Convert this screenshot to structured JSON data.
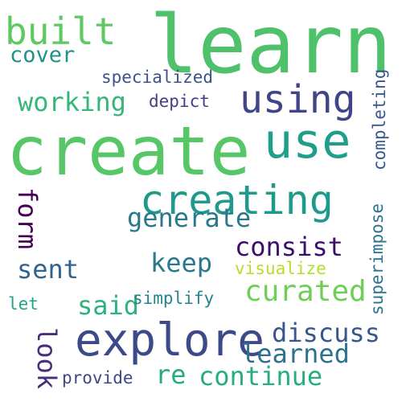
{
  "words": [
    {
      "key": "learn",
      "text": "learn",
      "color": "#4fc16b"
    },
    {
      "key": "create",
      "text": "create",
      "color": "#56c667"
    },
    {
      "key": "use",
      "text": "use",
      "color": "#1f9e89"
    },
    {
      "key": "explore",
      "text": "explore",
      "color": "#3e4989"
    },
    {
      "key": "creating",
      "text": "creating",
      "color": "#1f9a8a"
    },
    {
      "key": "using",
      "text": "using",
      "color": "#404588"
    },
    {
      "key": "built",
      "text": "built",
      "color": "#5ec962"
    },
    {
      "key": "generate",
      "text": "generate",
      "color": "#2a788e"
    },
    {
      "key": "consist",
      "text": "consist",
      "color": "#3b0f70"
    },
    {
      "key": "curated",
      "text": "curated",
      "color": "#6ece58"
    },
    {
      "key": "discuss",
      "text": "discuss",
      "color": "#39568c"
    },
    {
      "key": "learned",
      "text": "learned",
      "color": "#2c728e"
    },
    {
      "key": "continue",
      "text": "continue",
      "color": "#26ad81"
    },
    {
      "key": "cover",
      "text": "cover",
      "color": "#21918c"
    },
    {
      "key": "working",
      "text": "working",
      "color": "#35b779"
    },
    {
      "key": "specialized",
      "text": "specialized",
      "color": "#3b528b"
    },
    {
      "key": "depict",
      "text": "depict",
      "color": "#433e85"
    },
    {
      "key": "keep",
      "text": "keep",
      "color": "#2a788e"
    },
    {
      "key": "sent",
      "text": "sent",
      "color": "#33638d"
    },
    {
      "key": "said",
      "text": "said",
      "color": "#2db27d"
    },
    {
      "key": "visualize",
      "text": "visualize",
      "color": "#b5de2b"
    },
    {
      "key": "simplify",
      "text": "simplify",
      "color": "#25848e"
    },
    {
      "key": "let",
      "text": "let",
      "color": "#20a386"
    },
    {
      "key": "re",
      "text": "re",
      "color": "#25ab82"
    },
    {
      "key": "provide",
      "text": "provide",
      "color": "#3f4788"
    },
    {
      "key": "completing",
      "text": "completing",
      "color": "#38598c"
    },
    {
      "key": "superimpose",
      "text": "superimpose",
      "color": "#2c728e"
    },
    {
      "key": "form",
      "text": "form",
      "color": "#440154"
    },
    {
      "key": "look",
      "text": "look",
      "color": "#472d7b"
    }
  ]
}
